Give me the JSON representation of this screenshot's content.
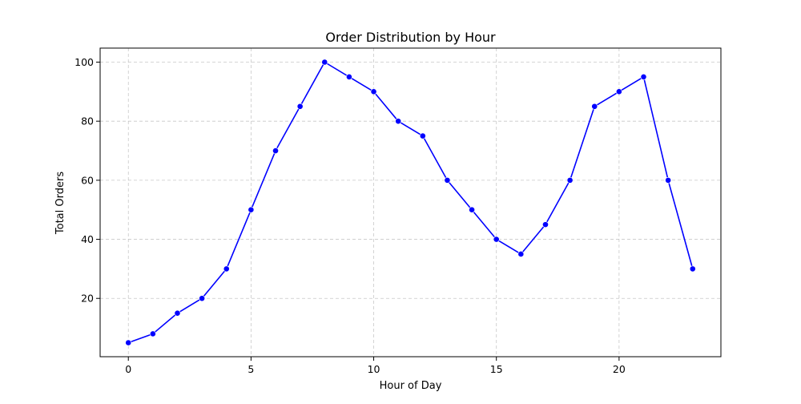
{
  "chart_data": {
    "type": "line",
    "title": "Order Distribution by Hour",
    "xlabel": "Hour of Day",
    "ylabel": "Total Orders",
    "xlim": [
      -1.15,
      24.15
    ],
    "ylim": [
      0.25,
      104.75
    ],
    "xticks": [
      0,
      5,
      10,
      15,
      20
    ],
    "yticks": [
      20,
      40,
      60,
      80,
      100
    ],
    "grid": true,
    "marker": "circle",
    "line_color": "#0000ff",
    "series": [
      {
        "x": [
          0,
          1,
          2,
          3,
          4,
          5,
          6,
          7,
          8,
          9,
          10,
          11,
          12,
          13,
          14,
          15,
          16,
          17,
          18,
          19,
          20,
          21,
          22,
          23
        ],
        "values": [
          5,
          8,
          15,
          20,
          30,
          50,
          70,
          85,
          100,
          95,
          90,
          80,
          75,
          60,
          50,
          40,
          35,
          45,
          60,
          85,
          90,
          95,
          60,
          30
        ]
      }
    ]
  }
}
